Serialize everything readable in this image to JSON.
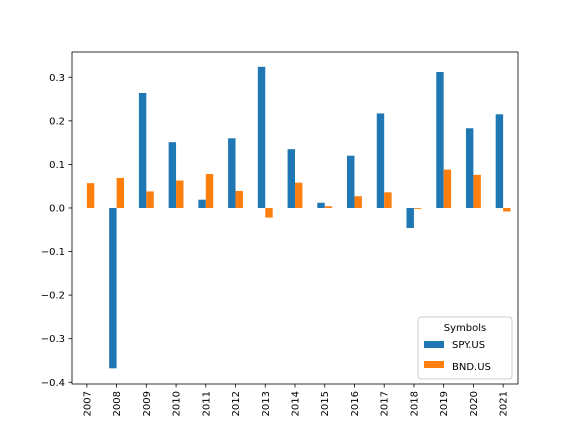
{
  "chart_data": {
    "type": "bar",
    "categories": [
      "2007",
      "2008",
      "2009",
      "2010",
      "2011",
      "2012",
      "2013",
      "2014",
      "2015",
      "2016",
      "2017",
      "2018",
      "2019",
      "2020",
      "2021"
    ],
    "series": [
      {
        "name": "SPY.US",
        "color": "#1f77b4",
        "values": [
          0.0,
          -0.368,
          0.264,
          0.151,
          0.019,
          0.16,
          0.324,
          0.135,
          0.012,
          0.12,
          0.217,
          -0.046,
          0.312,
          0.183,
          0.215
        ]
      },
      {
        "name": "BND.US",
        "color": "#ff7f0e",
        "values": [
          0.057,
          0.069,
          0.038,
          0.063,
          0.078,
          0.039,
          -0.022,
          0.058,
          0.004,
          0.027,
          0.036,
          -0.002,
          0.088,
          0.076,
          -0.008
        ]
      }
    ],
    "yticks": [
      -0.4,
      -0.3,
      -0.2,
      -0.1,
      0.0,
      0.1,
      0.2,
      0.3
    ],
    "ytick_labels": [
      "−0.4",
      "−0.3",
      "−0.2",
      "−0.1",
      "0.0",
      "0.1",
      "0.2",
      "0.3"
    ],
    "ylim": [
      -0.404,
      0.358
    ],
    "xlabel": "",
    "ylabel": "",
    "title": "",
    "legend": {
      "title": "Symbols",
      "position": "lower-right"
    },
    "grid": false
  }
}
